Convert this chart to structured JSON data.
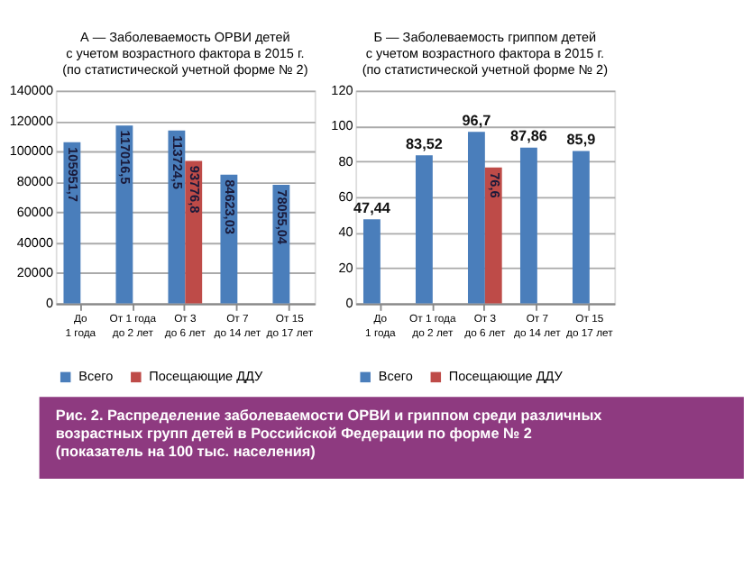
{
  "chart_data": [
    {
      "type": "bar",
      "title": "А — Заболеваемость ОРВИ детей\nс учетом возрастного фактора в 2015 г.\n(по статистической учетной форме № 2)",
      "categories": [
        "До\n1 года",
        "От 1 года\nдо 2 лет",
        "От 3\nдо 6 лет",
        "От 7\nдо 14 лет",
        "От 15\nдо 17 лет"
      ],
      "series": [
        {
          "name": "Всего",
          "color": "#4a7ebb",
          "values": [
            105951.7,
            117016.5,
            113724.5,
            84623.03,
            78055.04
          ],
          "value_labels": [
            "105951,7",
            "117016,5",
            "113724,5",
            "84623,03",
            "78055,04"
          ]
        },
        {
          "name": "Посещающие ДДУ",
          "color": "#be4b48",
          "values": [
            null,
            null,
            93776.8,
            null,
            null
          ],
          "value_labels": [
            null,
            null,
            "93776,8",
            null,
            null
          ]
        }
      ],
      "ylim": [
        0,
        140000
      ],
      "yticks": [
        0,
        20000,
        40000,
        60000,
        80000,
        100000,
        120000,
        140000
      ],
      "grid": "y",
      "legend": "bottom"
    },
    {
      "type": "bar",
      "title": "Б — Заболеваемость гриппом детей\nс учетом возрастного фактора в 2015 г.\n(по статистической учетной форме № 2)",
      "categories": [
        "До\n1 года",
        "От 1 года\nдо 2 лет",
        "От 3\nдо 6 лет",
        "От 7\nдо 14 лет",
        "От 15\nдо 17 лет"
      ],
      "series": [
        {
          "name": "Всего",
          "color": "#4a7ebb",
          "values": [
            47.44,
            83.52,
            96.7,
            87.86,
            85.9
          ],
          "value_labels": [
            "47,44",
            "83,52",
            "96,7",
            "87,86",
            "85,9"
          ]
        },
        {
          "name": "Посещающие ДДУ",
          "color": "#be4b48",
          "values": [
            null,
            null,
            76.6,
            null,
            null
          ],
          "value_labels": [
            null,
            null,
            "76,6",
            null,
            null
          ]
        }
      ],
      "ylim": [
        0,
        120
      ],
      "yticks": [
        0,
        20,
        40,
        60,
        80,
        100,
        120
      ],
      "grid": "y",
      "legend": "bottom",
      "annotations": [
        "Рис. 2. Распределение заболеваемости  ОРВИ и гриппом среди различных\nвозрастных групп детей в Российской Федерации по форме № 2\n(показатель на 100 тыс. населения)"
      ]
    }
  ]
}
